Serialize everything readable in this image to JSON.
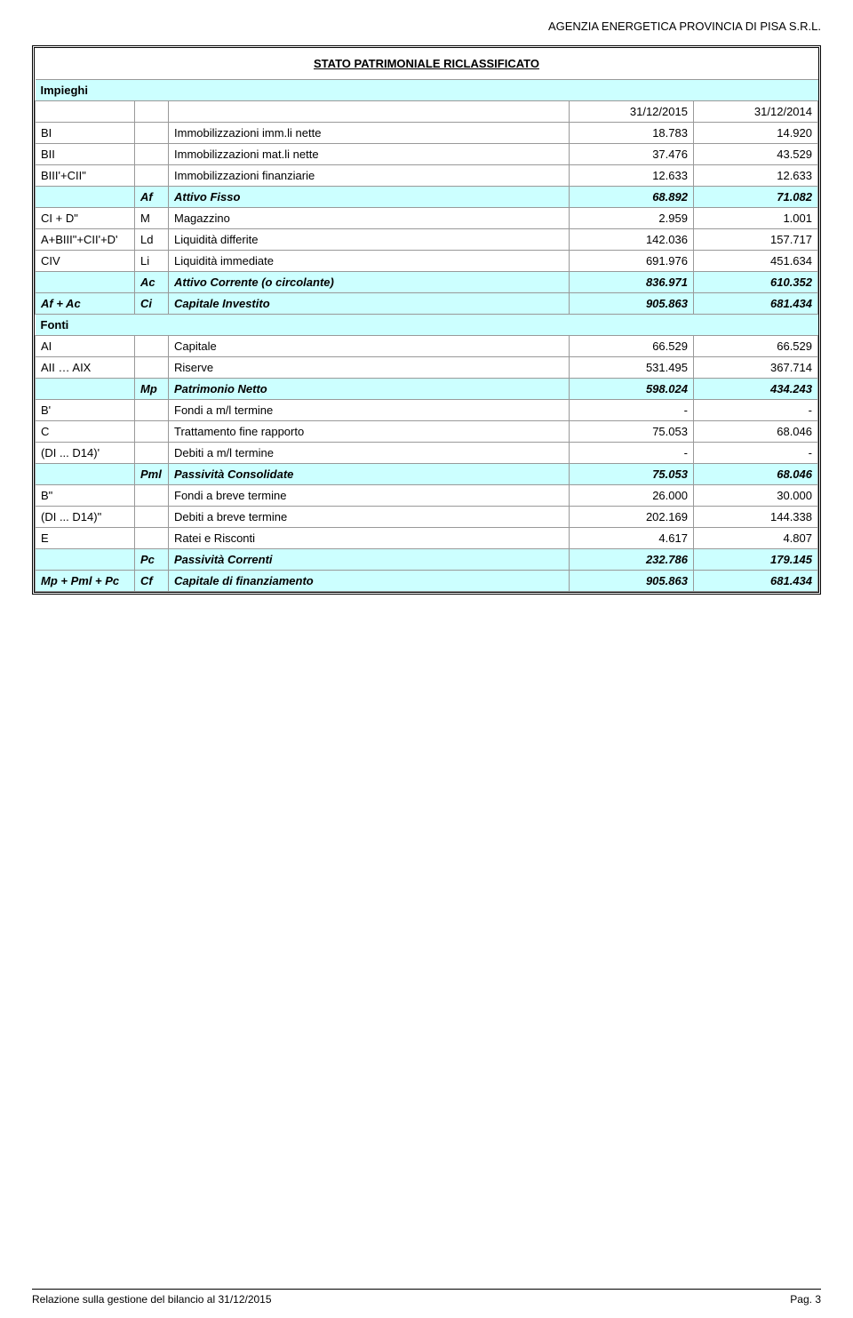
{
  "header": {
    "company": "AGENZIA ENERGETICA PROVINCIA DI PISA S.R.L."
  },
  "title": "STATO PATRIMONIALE RICLASSIFICATO",
  "column_dates": {
    "d1": "31/12/2015",
    "d2": "31/12/2014"
  },
  "sections": {
    "impieghi": "Impieghi",
    "fonti": "Fonti"
  },
  "rows": [
    {
      "lbl": "BI",
      "code": "",
      "desc": "Immobilizzazioni imm.li nette",
      "v1": "18.783",
      "v2": "14.920"
    },
    {
      "lbl": "BII",
      "code": "",
      "desc": "Immobilizzazioni mat.li nette",
      "v1": "37.476",
      "v2": "43.529"
    },
    {
      "lbl": "BIII'+CII\"",
      "code": "",
      "desc": "Immobilizzazioni finanziarie",
      "v1": "12.633",
      "v2": "12.633"
    }
  ],
  "af": {
    "code": "Af",
    "desc": "Attivo Fisso",
    "v1": "68.892",
    "v2": "71.082"
  },
  "rows2": [
    {
      "lbl": "CI + D\"",
      "code": "M",
      "desc": "Magazzino",
      "v1": "2.959",
      "v2": "1.001"
    },
    {
      "lbl": "A+BIII\"+CII'+D'",
      "code": "Ld",
      "desc": "Liquidità differite",
      "v1": "142.036",
      "v2": "157.717"
    },
    {
      "lbl": "CIV",
      "code": "Li",
      "desc": "Liquidità immediate",
      "v1": "691.976",
      "v2": "451.634"
    }
  ],
  "ac": {
    "code": "Ac",
    "desc": "Attivo Corrente (o circolante)",
    "v1": "836.971",
    "v2": "610.352"
  },
  "ci": {
    "lbl": "Af + Ac",
    "code": "Ci",
    "desc": "Capitale Investito",
    "v1": "905.863",
    "v2": "681.434"
  },
  "rows3": [
    {
      "lbl": "AI",
      "desc": "Capitale",
      "v1": "66.529",
      "v2": "66.529"
    },
    {
      "lbl": "AII … AIX",
      "desc": "Riserve",
      "v1": "531.495",
      "v2": "367.714"
    }
  ],
  "mp": {
    "code": "Mp",
    "desc": "Patrimonio Netto",
    "v1": "598.024",
    "v2": "434.243"
  },
  "b_prime": {
    "lbl": "B'",
    "desc": "Fondi a m/l termine",
    "v1": "-",
    "v2": "-"
  },
  "c_row": {
    "lbl": "C",
    "desc": "Trattamento fine rapporto",
    "v1": "75.053",
    "v2": "68.046"
  },
  "di1": {
    "lbl": "(DI ... D14)'",
    "desc": "Debiti a m/l termine",
    "v1": "-",
    "v2": "-"
  },
  "pml": {
    "code": "Pml",
    "desc": "Passività Consolidate",
    "v1": "75.053",
    "v2": "68.046"
  },
  "b_dbl": {
    "lbl": "B\"",
    "desc": "Fondi a breve termine",
    "v1": "26.000",
    "v2": "30.000"
  },
  "di2": {
    "lbl": "(DI ... D14)\"",
    "desc": "Debiti a breve termine",
    "v1": "202.169",
    "v2": "144.338"
  },
  "e_row": {
    "lbl": "E",
    "desc": "Ratei e Risconti",
    "v1": "4.617",
    "v2": "4.807"
  },
  "pc": {
    "code": "Pc",
    "desc": "Passività Correnti",
    "v1": "232.786",
    "v2": "179.145"
  },
  "cf": {
    "lbl": "Mp + Pml + Pc",
    "code": "Cf",
    "desc": "Capitale di finanziamento",
    "v1": "905.863",
    "v2": "681.434"
  },
  "footer": {
    "left": "Relazione sulla gestione del bilancio al 31/12/2015",
    "right": "Pag. 3"
  },
  "colors": {
    "section_bg": "#ccffff",
    "border": "#999999",
    "text": "#000000"
  }
}
